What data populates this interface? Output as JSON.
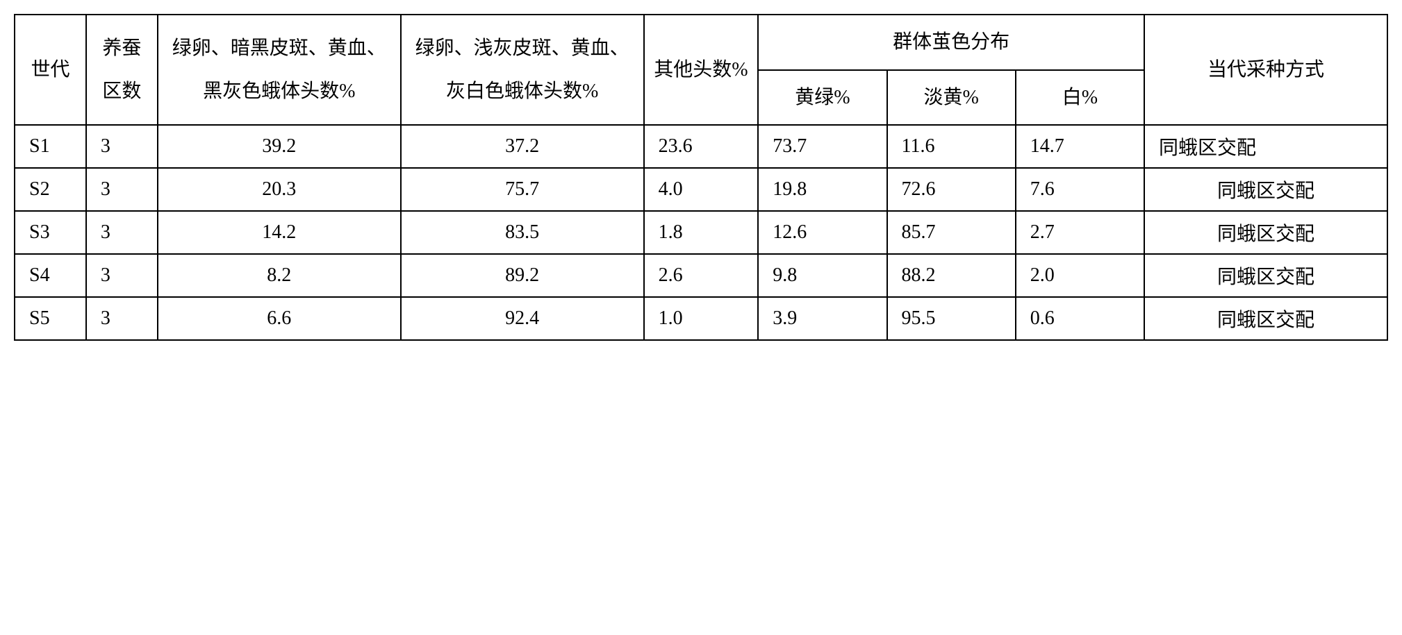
{
  "table": {
    "headers": {
      "generation": "世代",
      "zone_count": "养蚕区数",
      "dark_moth": "绿卵、暗黑皮斑、黄血、黑灰色蛾体头数%",
      "light_moth": "绿卵、浅灰皮斑、黄血、灰白色蛾体头数%",
      "other_count": "其他头数%",
      "cocoon_dist": "群体茧色分布",
      "yellow_green": "黄绿%",
      "light_yellow": "淡黄%",
      "white": "白%",
      "method": "当代采种方式"
    },
    "rows": [
      {
        "gen": "S1",
        "zones": "3",
        "dark": "39.2",
        "light": "37.2",
        "other": "23.6",
        "yg": "73.7",
        "ly": "11.6",
        "w": "14.7",
        "method": "同蛾区交配"
      },
      {
        "gen": "S2",
        "zones": "3",
        "dark": "20.3",
        "light": "75.7",
        "other": "4.0",
        "yg": "19.8",
        "ly": "72.6",
        "w": "7.6",
        "method": "同蛾区交配"
      },
      {
        "gen": "S3",
        "zones": "3",
        "dark": "14.2",
        "light": "83.5",
        "other": "1.8",
        "yg": "12.6",
        "ly": "85.7",
        "w": "2.7",
        "method": "同蛾区交配"
      },
      {
        "gen": "S4",
        "zones": "3",
        "dark": "8.2",
        "light": "89.2",
        "other": "2.6",
        "yg": "9.8",
        "ly": "88.2",
        "w": "2.0",
        "method": "同蛾区交配"
      },
      {
        "gen": "S5",
        "zones": "3",
        "dark": "6.6",
        "light": "92.4",
        "other": "1.0",
        "yg": "3.9",
        "ly": "95.5",
        "w": "0.6",
        "method": "同蛾区交配"
      }
    ]
  }
}
